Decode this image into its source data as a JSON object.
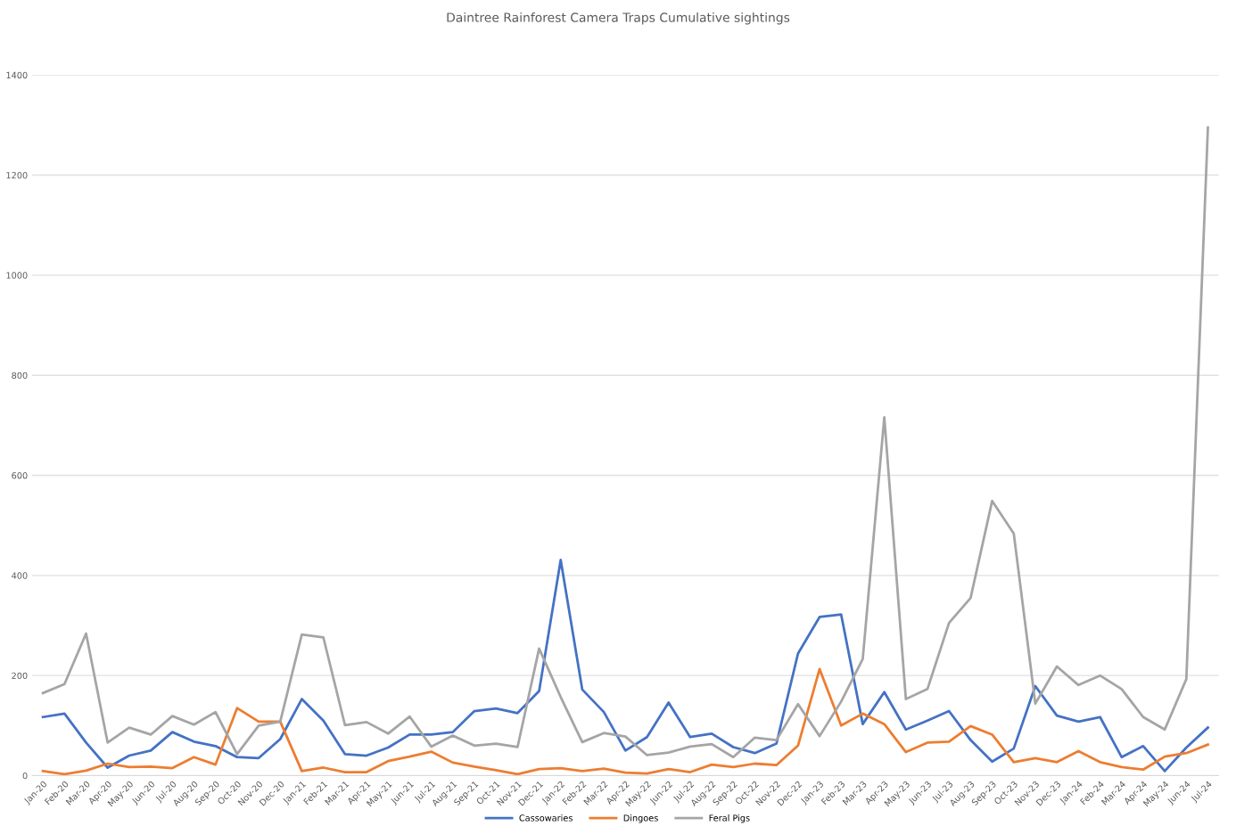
{
  "chart_data": {
    "type": "line",
    "title": "Daintree Rainforest Camera Traps Cumulative sightings",
    "categories": [
      "Jan-20",
      "Feb-20",
      "Mar-20",
      "Apr-20",
      "May-20",
      "Jun-20",
      "Jul-20",
      "Aug-20",
      "Sep-20",
      "Oct-20",
      "Nov-20",
      "Dec-20",
      "Jan-21",
      "Feb-21",
      "Mar-21",
      "Apr-21",
      "May-21",
      "Jun-21",
      "Jul-21",
      "Aug-21",
      "Sep-21",
      "Oct-21",
      "Nov-21",
      "Dec-21",
      "Jan-22",
      "Feb-22",
      "Mar-22",
      "Apr-22",
      "May-22",
      "Jun-22",
      "Jul-22",
      "Aug-22",
      "Sep-22",
      "Oct-22",
      "Nov-22",
      "Dec-22",
      "Jan-23",
      "Feb-23",
      "Mar-23",
      "Apr-23",
      "May-23",
      "Jun-23",
      "Jul-23",
      "Aug-23",
      "Sep-23",
      "Oct-23",
      "Nov-23",
      "Dec-23",
      "Jan-24",
      "Feb-24",
      "Mar-24",
      "Apr-24",
      "May-24",
      "Jun-24",
      "Jul-24"
    ],
    "series": [
      {
        "name": "Cassowaries",
        "color": "#4472c4",
        "values": [
          117,
          124,
          66,
          16,
          40,
          50,
          87,
          68,
          59,
          37,
          35,
          73,
          153,
          110,
          43,
          40,
          56,
          82,
          82,
          87,
          129,
          134,
          125,
          169,
          431,
          172,
          127,
          50,
          77,
          146,
          77,
          84,
          57,
          45,
          64,
          244,
          317,
          322,
          103,
          167,
          92,
          110,
          129,
          71,
          28,
          54,
          179,
          120,
          108,
          117,
          37,
          59,
          9,
          56,
          96
        ]
      },
      {
        "name": "Dingoes",
        "color": "#ed7d31",
        "values": [
          9,
          3,
          10,
          24,
          17,
          18,
          15,
          37,
          22,
          135,
          108,
          108,
          9,
          16,
          7,
          7,
          29,
          38,
          48,
          26,
          18,
          11,
          3,
          13,
          15,
          9,
          14,
          6,
          4,
          13,
          7,
          22,
          17,
          24,
          21,
          60,
          213,
          100,
          124,
          103,
          47,
          66,
          68,
          99,
          82,
          27,
          35,
          27,
          49,
          27,
          17,
          12,
          38,
          45,
          62
        ]
      },
      {
        "name": "Feral Pigs",
        "color": "#a5a5a5",
        "values": [
          165,
          183,
          284,
          66,
          96,
          82,
          119,
          102,
          127,
          43,
          100,
          108,
          282,
          276,
          101,
          107,
          84,
          118,
          58,
          80,
          60,
          64,
          57,
          254,
          157,
          67,
          85,
          78,
          41,
          46,
          58,
          63,
          37,
          76,
          71,
          143,
          79,
          148,
          233,
          716,
          153,
          173,
          305,
          355,
          549,
          484,
          144,
          218,
          181,
          200,
          173,
          117,
          92,
          193,
          1295
        ]
      }
    ],
    "ylim": [
      0,
      1400
    ],
    "yticks": [
      0,
      200,
      400,
      600,
      800,
      1000,
      1200,
      1400
    ],
    "grid": "y",
    "legend": "bottom",
    "marker": "none",
    "line_style": "solid"
  }
}
